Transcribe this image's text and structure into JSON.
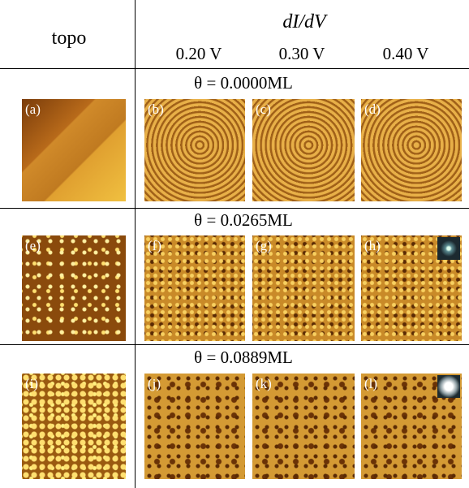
{
  "header": {
    "topo": "topo",
    "didv": "dI/dV",
    "voltages": [
      "0.20 V",
      "0.30 V",
      "0.40 V"
    ]
  },
  "rows": [
    {
      "coverage": "θ = 0.0000ML",
      "panels": [
        "(a)",
        "(b)",
        "(c)",
        "(d)"
      ]
    },
    {
      "coverage": "θ = 0.0265ML",
      "panels": [
        "(e)",
        "(f)",
        "(g)",
        "(h)"
      ]
    },
    {
      "coverage": "θ = 0.0889ML",
      "panels": [
        "(i)",
        "(j)",
        "(k)",
        "(l)"
      ]
    }
  ]
}
